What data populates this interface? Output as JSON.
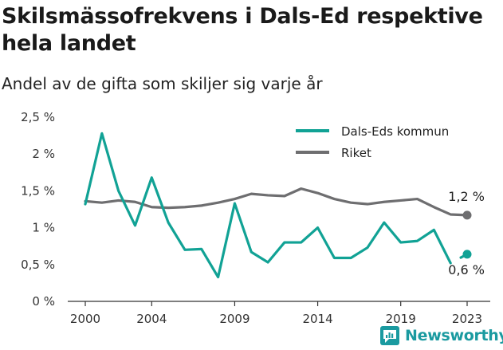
{
  "header": {
    "title": "Skilsmässofrekvens i Dals-Ed respektive hela landet",
    "subtitle": "Andel av de gifta som skiljer sig varje år"
  },
  "brand": {
    "name": "Newsworthy",
    "icon": "newsworthy-logo-icon"
  },
  "colors": {
    "dals_ed": "#11a295",
    "riket": "#6e6e70",
    "axis": "#333333"
  },
  "chart_data": {
    "type": "line",
    "x": [
      2000,
      2001,
      2002,
      2003,
      2004,
      2005,
      2006,
      2007,
      2008,
      2009,
      2010,
      2011,
      2012,
      2013,
      2014,
      2015,
      2016,
      2017,
      2018,
      2019,
      2020,
      2021,
      2022,
      2023
    ],
    "x_ticks": [
      2000,
      2004,
      2009,
      2014,
      2019,
      2023
    ],
    "x_tick_labels": [
      "2000",
      "2004",
      "2009",
      "2014",
      "2019",
      "2023"
    ],
    "y_ticks": [
      0,
      0.5,
      1,
      1.5,
      2,
      2.5
    ],
    "y_tick_labels": [
      "0 %",
      "0,5 %",
      "1 %",
      "1,5 %",
      "2 %",
      "2,5 %"
    ],
    "ylim": [
      0,
      2.5
    ],
    "xlim": [
      2000,
      2023
    ],
    "xlabel": "",
    "ylabel": "",
    "legend": "top-right",
    "grid": false,
    "series": [
      {
        "name": "Dals-Eds kommun",
        "key": "dals_ed",
        "values": [
          1.32,
          2.28,
          1.5,
          1.03,
          1.68,
          1.07,
          0.7,
          0.71,
          0.33,
          1.33,
          0.67,
          0.53,
          0.8,
          0.8,
          1.0,
          0.59,
          0.59,
          0.73,
          1.07,
          0.8,
          0.82,
          0.97,
          0.52,
          0.64
        ],
        "gap_before_last": true,
        "end_label": "0,6 %"
      },
      {
        "name": "Riket",
        "key": "riket",
        "values": [
          1.36,
          1.34,
          1.37,
          1.35,
          1.28,
          1.27,
          1.28,
          1.3,
          1.34,
          1.39,
          1.46,
          1.44,
          1.43,
          1.53,
          1.47,
          1.39,
          1.34,
          1.32,
          1.35,
          1.37,
          1.39,
          1.28,
          1.18,
          1.17
        ],
        "gap_before_last": false,
        "end_label": "1,2 %"
      }
    ]
  }
}
